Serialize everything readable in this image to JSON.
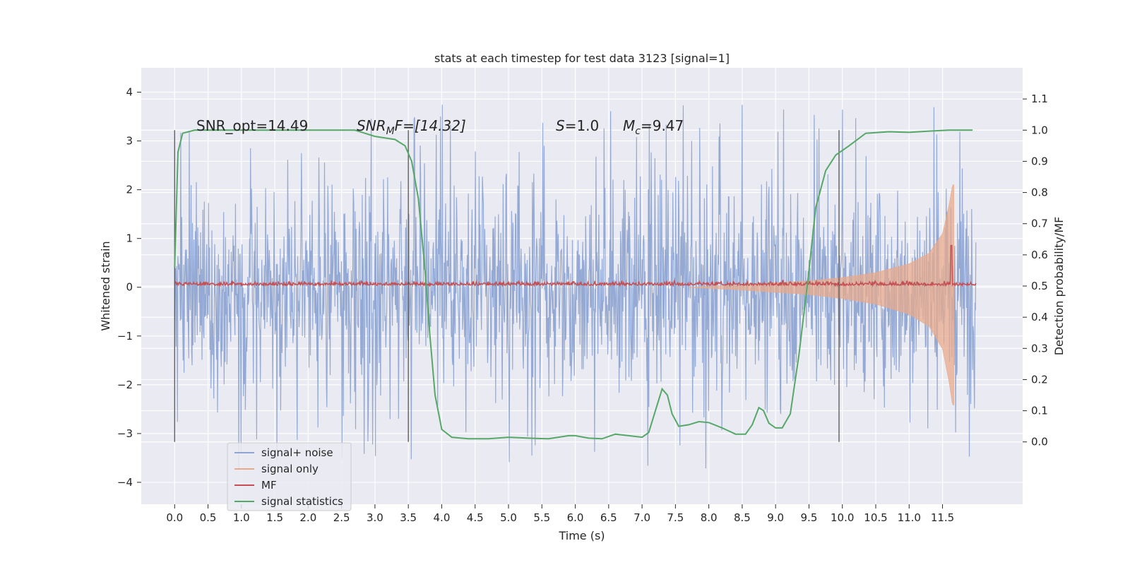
{
  "chart_data": {
    "type": "line",
    "title": "stats at each timestep for test data 3123 [signal=1]",
    "xlabel": "Time (s)",
    "ylabel": "Whitened strain",
    "y2label": "Detection probability/MF",
    "xlim": [
      -0.5,
      12.7
    ],
    "ylim": [
      -4.45,
      4.5
    ],
    "y2lim": [
      -0.2,
      1.2
    ],
    "x_ticks": [
      "0.0",
      "0.5",
      "1.0",
      "1.5",
      "2.0",
      "2.5",
      "3.0",
      "3.5",
      "4.0",
      "4.5",
      "5.0",
      "5.5",
      "6.0",
      "6.5",
      "7.0",
      "7.5",
      "8.0",
      "8.5",
      "9.0",
      "9.5",
      "10.0",
      "10.5",
      "11.0",
      "11.5"
    ],
    "y_ticks": [
      "4",
      "3",
      "2",
      "1",
      "0",
      "−1",
      "−2",
      "−3",
      "−4"
    ],
    "y2_ticks": [
      "1.1",
      "1.0",
      "0.9",
      "0.8",
      "0.7",
      "0.6",
      "0.5",
      "0.4",
      "0.3",
      "0.2",
      "0.1",
      "0.0"
    ],
    "grid": true,
    "legend_position": "lower-left",
    "annotations": {
      "snr_opt": "SNR_opt=14.49",
      "snr_mf_name": "SNR",
      "snr_mf_sub": "M",
      "snr_mf_rest": "F=[14.32]",
      "s_name": "S",
      "s_rest": "=1.0",
      "mc_name": "M",
      "mc_sub": "c",
      "mc_rest": "=9.47"
    },
    "vertical_markers": [
      0.0,
      3.5,
      9.95
    ],
    "marker_range_y2": [
      0.0,
      1.0
    ],
    "series": [
      {
        "name": "signal+ noise",
        "color": "#8fa6d2",
        "axis": "left",
        "x_range": [
          0.0,
          12.0
        ],
        "envelope_typical": 1.9,
        "envelope_max": 4.1,
        "envelope_min": -4.1
      },
      {
        "name": "signal only",
        "color": "#e8a98c",
        "axis": "left",
        "x_range": [
          7.7,
          11.67
        ],
        "amplitude_points": [
          [
            7.7,
            0.0
          ],
          [
            8.5,
            0.05
          ],
          [
            9.0,
            0.09
          ],
          [
            9.5,
            0.13
          ],
          [
            10.0,
            0.2
          ],
          [
            10.5,
            0.3
          ],
          [
            11.0,
            0.48
          ],
          [
            11.3,
            0.7
          ],
          [
            11.5,
            1.1
          ],
          [
            11.6,
            1.7
          ],
          [
            11.65,
            2.1
          ]
        ]
      },
      {
        "name": "MF",
        "color": "#c44e52",
        "axis": "right",
        "x_range": [
          0.0,
          12.0
        ],
        "baseline": 0.5,
        "peak": {
          "x": 11.63,
          "y": 0.63
        }
      },
      {
        "name": "signal statistics",
        "color": "#55a868",
        "axis": "right",
        "points": [
          [
            0.0,
            0.56
          ],
          [
            0.05,
            0.93
          ],
          [
            0.12,
            0.99
          ],
          [
            0.3,
            1.0
          ],
          [
            2.7,
            1.0
          ],
          [
            3.0,
            0.98
          ],
          [
            3.3,
            0.97
          ],
          [
            3.45,
            0.95
          ],
          [
            3.55,
            0.9
          ],
          [
            3.65,
            0.78
          ],
          [
            3.75,
            0.55
          ],
          [
            3.82,
            0.35
          ],
          [
            3.9,
            0.15
          ],
          [
            4.0,
            0.04
          ],
          [
            4.15,
            0.015
          ],
          [
            4.4,
            0.01
          ],
          [
            4.7,
            0.01
          ],
          [
            5.0,
            0.015
          ],
          [
            5.3,
            0.012
          ],
          [
            5.6,
            0.01
          ],
          [
            5.9,
            0.02
          ],
          [
            6.0,
            0.02
          ],
          [
            6.2,
            0.012
          ],
          [
            6.4,
            0.01
          ],
          [
            6.6,
            0.025
          ],
          [
            6.8,
            0.02
          ],
          [
            7.0,
            0.015
          ],
          [
            7.1,
            0.03
          ],
          [
            7.2,
            0.1
          ],
          [
            7.3,
            0.17
          ],
          [
            7.38,
            0.15
          ],
          [
            7.45,
            0.09
          ],
          [
            7.55,
            0.05
          ],
          [
            7.7,
            0.055
          ],
          [
            7.85,
            0.065
          ],
          [
            8.0,
            0.062
          ],
          [
            8.2,
            0.045
          ],
          [
            8.4,
            0.025
          ],
          [
            8.55,
            0.025
          ],
          [
            8.65,
            0.055
          ],
          [
            8.75,
            0.11
          ],
          [
            8.82,
            0.1
          ],
          [
            8.9,
            0.06
          ],
          [
            9.0,
            0.045
          ],
          [
            9.1,
            0.045
          ],
          [
            9.22,
            0.09
          ],
          [
            9.35,
            0.28
          ],
          [
            9.5,
            0.55
          ],
          [
            9.6,
            0.75
          ],
          [
            9.75,
            0.87
          ],
          [
            9.9,
            0.92
          ],
          [
            10.1,
            0.95
          ],
          [
            10.35,
            0.99
          ],
          [
            10.7,
            0.995
          ],
          [
            11.0,
            0.993
          ],
          [
            11.3,
            0.997
          ],
          [
            11.6,
            1.0
          ],
          [
            11.95,
            1.0
          ]
        ]
      }
    ]
  }
}
